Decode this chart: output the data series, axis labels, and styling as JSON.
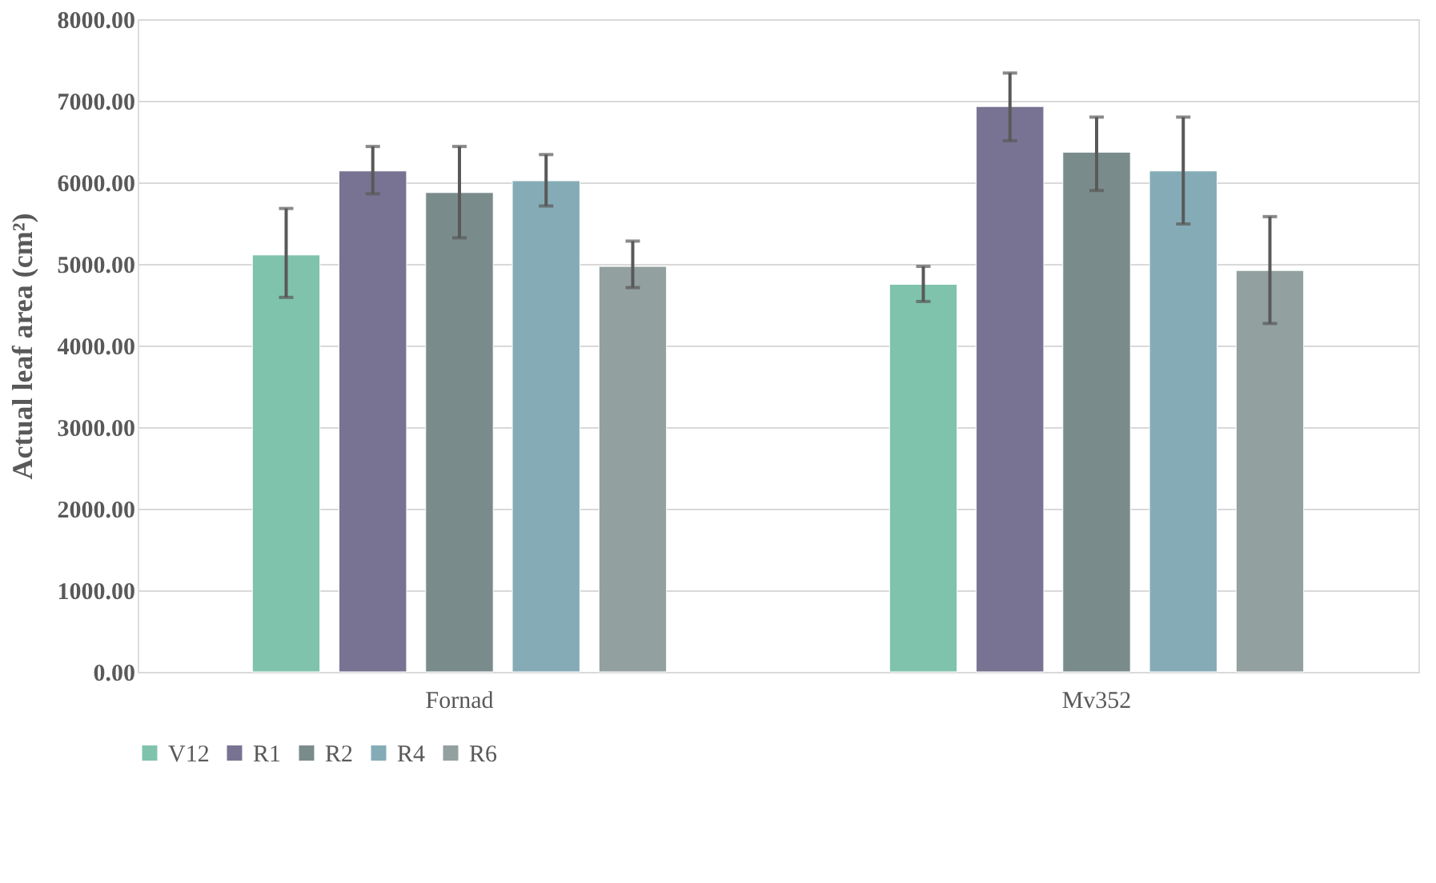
{
  "chart_data": {
    "type": "bar",
    "ylabel": "Actual leaf area (cm²)",
    "categories": [
      "Fornad",
      "Mv352"
    ],
    "series": [
      {
        "name": "V12",
        "color": "#80c3ad",
        "values": [
          5110,
          4750
        ],
        "errors": [
          [
            4590,
            5680
          ],
          [
            4540,
            4970
          ]
        ]
      },
      {
        "name": "R1",
        "color": "#787392",
        "values": [
          6140,
          6930
        ],
        "errors": [
          [
            5860,
            6440
          ],
          [
            6510,
            7340
          ]
        ]
      },
      {
        "name": "R2",
        "color": "#7a8b8c",
        "values": [
          5875,
          6370
        ],
        "errors": [
          [
            5320,
            6440
          ],
          [
            5900,
            6800
          ]
        ]
      },
      {
        "name": "R4",
        "color": "#85acb6",
        "values": [
          6020,
          6140
        ],
        "errors": [
          [
            5710,
            6340
          ],
          [
            5490,
            6800
          ]
        ]
      },
      {
        "name": "R6",
        "color": "#92a19f",
        "values": [
          4970,
          4920
        ],
        "errors": [
          [
            4710,
            5280
          ],
          [
            4270,
            5580
          ]
        ]
      }
    ],
    "ylim": [
      0,
      8000
    ],
    "yticks": [
      {
        "value": 0,
        "label": "0.00"
      },
      {
        "value": 1000,
        "label": "1000.00"
      },
      {
        "value": 2000,
        "label": "2000.00"
      },
      {
        "value": 3000,
        "label": "3000.00"
      },
      {
        "value": 4000,
        "label": "4000.00"
      },
      {
        "value": 5000,
        "label": "5000.00"
      },
      {
        "value": 6000,
        "label": "6000.00"
      },
      {
        "value": 7000,
        "label": "7000.00"
      },
      {
        "value": 8000,
        "label": "8000.00"
      }
    ],
    "grid": "y",
    "legend": "bottom"
  }
}
